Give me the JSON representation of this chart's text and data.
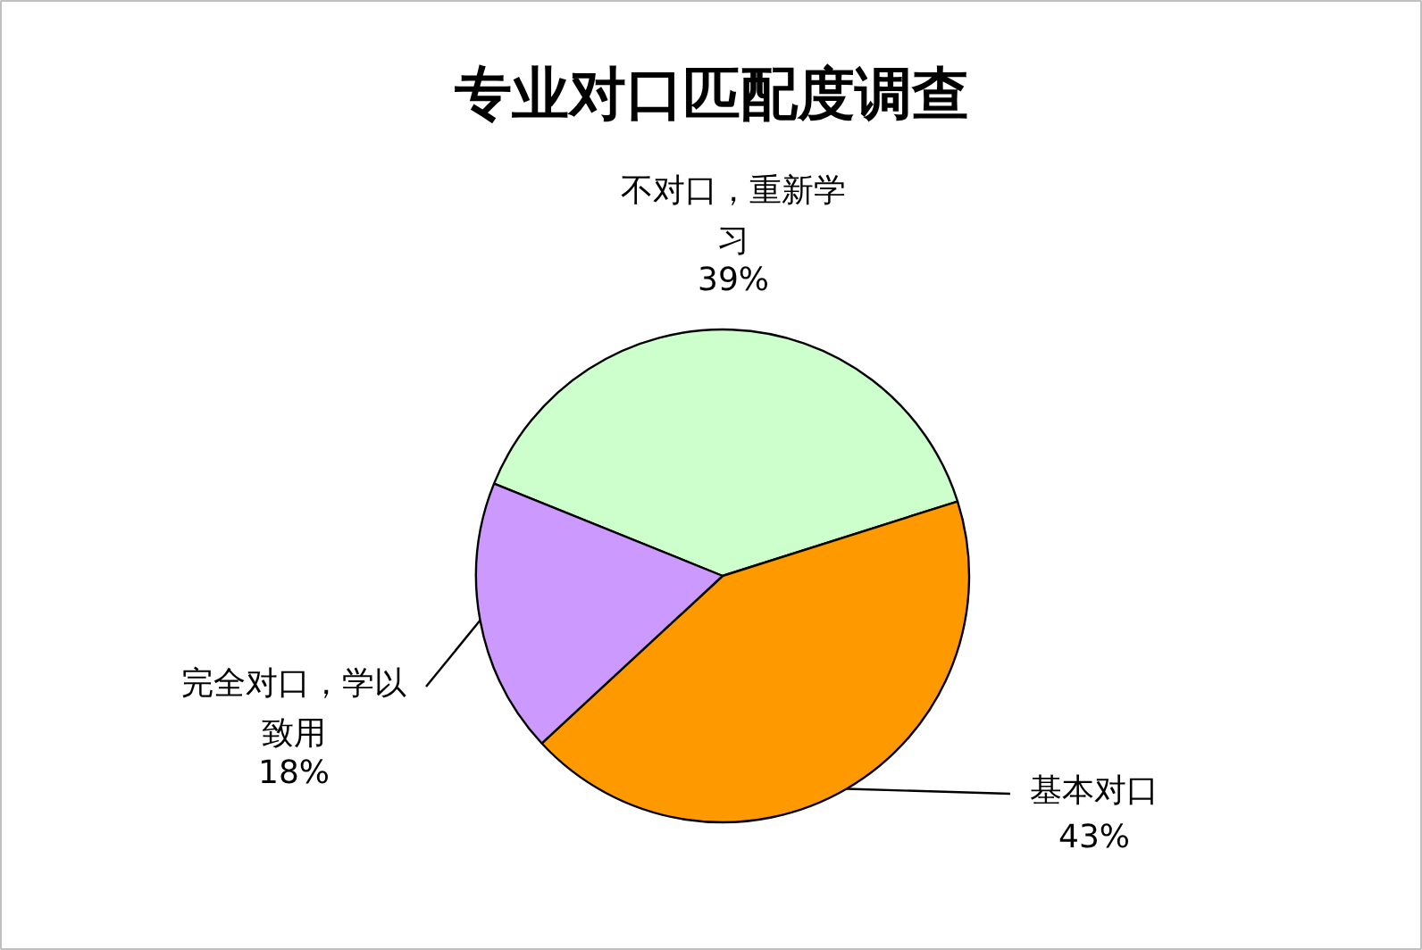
{
  "chart_data": {
    "type": "pie",
    "title": "专业对口匹配度调查",
    "categories": [
      "不对口，重新学习",
      "基本对口",
      "完全对口，学以致用"
    ],
    "values": [
      39,
      43,
      18
    ],
    "colors": [
      "#ccffcc",
      "#ff9900",
      "#cc99ff"
    ],
    "value_labels": [
      "39%",
      "43%",
      "18%"
    ]
  }
}
